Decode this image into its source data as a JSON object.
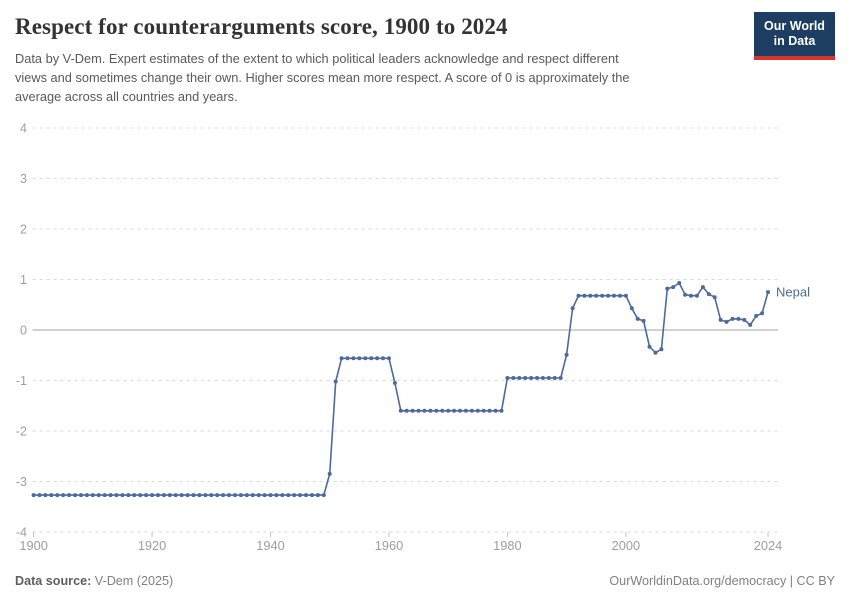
{
  "header": {
    "title": "Respect for counterarguments score, 1900 to 2024",
    "subtitle_lines": [
      "Data by V-Dem. Expert estimates of the extent to which political leaders acknowledge and respect different",
      "views and sometimes change their own. Higher scores mean more respect. A score of 0 is approximately the",
      "average across all countries and years."
    ],
    "logo": {
      "line1": "Our World",
      "line2": "in Data",
      "navy": "#1d3d63",
      "red": "#d8352f"
    }
  },
  "chart_data": {
    "type": "line",
    "title": "Respect for counterarguments score, 1900 to 2024",
    "entity_label": "Nepal",
    "xlabel": "",
    "ylabel": "",
    "x_ticks": [
      1900,
      1920,
      1940,
      1960,
      1980,
      2000,
      2024
    ],
    "y_ticks": [
      4,
      3,
      2,
      1,
      0,
      -1,
      -2,
      -3,
      -4
    ],
    "xlim": [
      1900,
      2024
    ],
    "ylim": [
      -4,
      4
    ],
    "grid": "horizontal-dashed",
    "zero_line": true,
    "legend_position": "line-end-label",
    "colors": {
      "line": "#4c6a9c",
      "grid": "#d9d9d9",
      "zero_line": "#a3a3a3",
      "axis_text": "#9e9e9e",
      "tick": "#c4c4c4"
    },
    "series": [
      {
        "name": "Nepal",
        "color": "#4c6a9c",
        "start_year": 1900,
        "values": [
          -3.27,
          -3.27,
          -3.27,
          -3.27,
          -3.27,
          -3.27,
          -3.27,
          -3.27,
          -3.27,
          -3.27,
          -3.27,
          -3.27,
          -3.27,
          -3.27,
          -3.27,
          -3.27,
          -3.27,
          -3.27,
          -3.27,
          -3.27,
          -3.27,
          -3.27,
          -3.27,
          -3.27,
          -3.27,
          -3.27,
          -3.27,
          -3.27,
          -3.27,
          -3.27,
          -3.27,
          -3.27,
          -3.27,
          -3.27,
          -3.27,
          -3.27,
          -3.27,
          -3.27,
          -3.27,
          -3.27,
          -3.27,
          -3.27,
          -3.27,
          -3.27,
          -3.27,
          -3.27,
          -3.27,
          -3.27,
          -3.27,
          -3.27,
          -2.85,
          -1.02,
          -0.56,
          -0.56,
          -0.56,
          -0.56,
          -0.56,
          -0.56,
          -0.56,
          -0.56,
          -0.56,
          -1.05,
          -1.6,
          -1.6,
          -1.6,
          -1.6,
          -1.6,
          -1.6,
          -1.6,
          -1.6,
          -1.6,
          -1.6,
          -1.6,
          -1.6,
          -1.6,
          -1.6,
          -1.6,
          -1.6,
          -1.6,
          -1.6,
          -0.95,
          -0.95,
          -0.95,
          -0.95,
          -0.95,
          -0.95,
          -0.95,
          -0.95,
          -0.95,
          -0.95,
          -0.49,
          0.43,
          0.68,
          0.68,
          0.68,
          0.68,
          0.68,
          0.68,
          0.68,
          0.68,
          0.68,
          0.43,
          0.22,
          0.18,
          -0.33,
          -0.45,
          -0.38,
          0.82,
          0.85,
          0.93,
          0.7,
          0.68,
          0.68,
          0.85,
          0.71,
          0.65,
          0.2,
          0.16,
          0.22,
          0.22,
          0.2,
          0.1,
          0.28,
          0.33,
          0.75
        ]
      }
    ]
  },
  "footer": {
    "source_label": "Data source:",
    "source_value": "V-Dem (2025)",
    "right_text": "OurWorldinData.org/democracy | CC BY"
  }
}
